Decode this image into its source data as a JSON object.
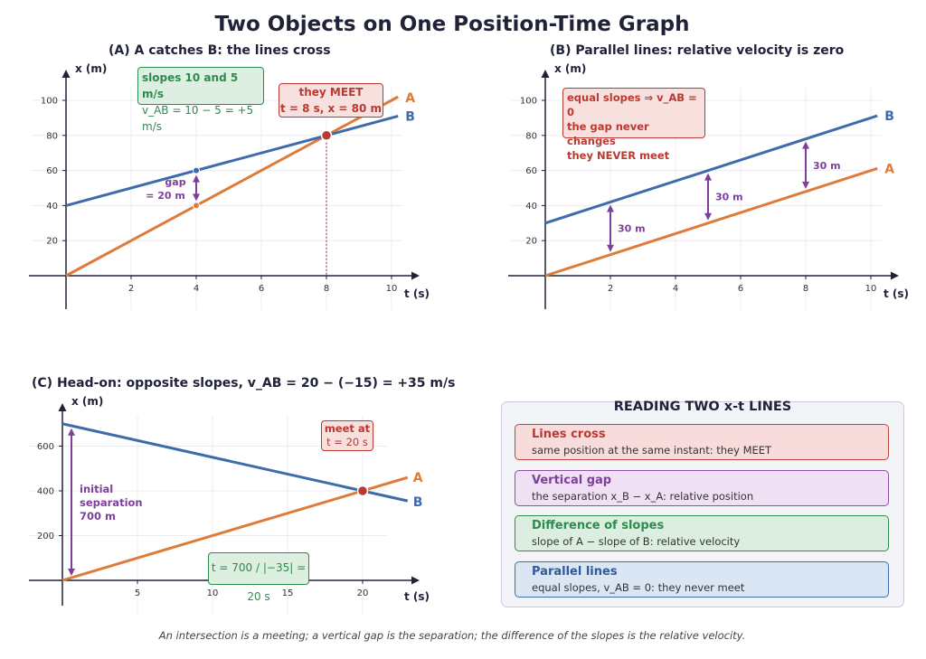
{
  "title": "Two Objects on One Position-Time Graph",
  "colors": {
    "A": "#df7b3a",
    "B": "#3f6bab",
    "green": "#2e8b4e",
    "red": "#b93a32",
    "purple": "#7d3f9b"
  },
  "panel_a": {
    "title": "(A)  A catches B: the lines cross",
    "xlabel": "t (s)",
    "ylabel": "x (m)",
    "series_a_label": "A",
    "series_b_label": "B",
    "slopes_box": {
      "line1": "slopes 10 and 5 m/s",
      "line2": "v_AB = 10 − 5 = +5 m/s"
    },
    "meet_box": {
      "line1": "they MEET",
      "line2": "t = 8 s,  x = 80 m"
    },
    "gap_label": {
      "line1": "gap",
      "line2": "= 20 m"
    }
  },
  "panel_b": {
    "title": "(B)  Parallel lines: relative velocity is zero",
    "xlabel": "t (s)",
    "ylabel": "x (m)",
    "series_a_label": "A",
    "series_b_label": "B",
    "info_box": {
      "line1": "equal slopes ⇒ v_AB = 0",
      "line2": "the gap never changes",
      "line3": "they NEVER meet"
    },
    "gap_label": "30 m"
  },
  "panel_c": {
    "title": "(C)  Head-on: opposite slopes, v_AB = 20 − (−15) = +35 m/s",
    "xlabel": "t (s)",
    "ylabel": "x (m)",
    "series_a_label": "A",
    "series_b_label": "B",
    "meet_box": {
      "line1": "meet at",
      "line2": "t = 20 s"
    },
    "separation_label": {
      "line1": "initial",
      "line2": "separation",
      "line3": "700 m"
    },
    "formula_box": "t = 700 / |−35| = 20 s"
  },
  "legend": {
    "title": "READING TWO x-t LINES",
    "items": [
      {
        "title": "Lines cross",
        "desc": "same position at the same instant: they MEET"
      },
      {
        "title": "Vertical gap",
        "desc": "the separation x_B − x_A: relative position"
      },
      {
        "title": "Difference of slopes",
        "desc": "slope of A − slope of B: relative velocity"
      },
      {
        "title": "Parallel lines",
        "desc": "equal slopes, v_AB = 0: they never meet"
      }
    ]
  },
  "caption": "An intersection is a meeting; a vertical gap is the separation; the difference of the slopes is the relative velocity.",
  "chart_data": [
    {
      "type": "line",
      "panel": "A",
      "xlabel": "t (s)",
      "ylabel": "x (m)",
      "xticks": [
        2,
        4,
        6,
        8,
        10
      ],
      "yticks": [
        20,
        40,
        60,
        80,
        100
      ],
      "xlim": [
        0,
        10.5
      ],
      "ylim": [
        0,
        110
      ],
      "series": [
        {
          "name": "A",
          "x": [
            0,
            10.2
          ],
          "y": [
            0,
            102
          ]
        },
        {
          "name": "B",
          "x": [
            0,
            10.2
          ],
          "y": [
            40,
            91
          ]
        }
      ],
      "intersection": {
        "t": 8,
        "x": 80
      },
      "gap_at": {
        "t": 4,
        "xa": 40,
        "xb": 60
      }
    },
    {
      "type": "line",
      "panel": "B",
      "xlabel": "t (s)",
      "ylabel": "x (m)",
      "xticks": [
        2,
        4,
        6,
        8,
        10
      ],
      "yticks": [
        20,
        40,
        60,
        80,
        100
      ],
      "xlim": [
        0,
        10.5
      ],
      "ylim": [
        0,
        110
      ],
      "series": [
        {
          "name": "A",
          "x": [
            0,
            10.2
          ],
          "y": [
            0,
            61.2
          ]
        },
        {
          "name": "B",
          "x": [
            0,
            10.2
          ],
          "y": [
            30,
            91.2
          ]
        }
      ],
      "gaps_at": [
        2,
        5,
        8
      ]
    },
    {
      "type": "line",
      "panel": "C",
      "xlabel": "t (s)",
      "ylabel": "x (m)",
      "xticks": [
        5,
        10,
        15,
        20
      ],
      "yticks": [
        200,
        400,
        600
      ],
      "xlim": [
        0,
        23
      ],
      "ylim": [
        0,
        720
      ],
      "series": [
        {
          "name": "A",
          "x": [
            0,
            23
          ],
          "y": [
            0,
            460
          ]
        },
        {
          "name": "B",
          "x": [
            0,
            23
          ],
          "y": [
            700,
            355
          ]
        }
      ],
      "intersection": {
        "t": 20,
        "x": 400
      }
    }
  ]
}
